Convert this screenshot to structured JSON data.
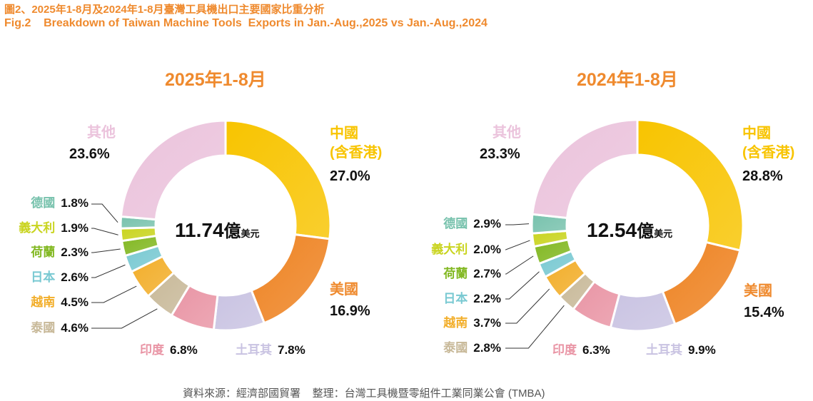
{
  "header": {
    "title_cn": "圖2、2025年1-8月及2024年1-8月臺灣工具機出口主要國家比重分析",
    "title_en": "Fig.2    Breakdown of Taiwan Machine Tools  Exports in Jan.-Aug.,2025 vs Jan.-Aug.,2024"
  },
  "footer": {
    "source": "資料來源：經濟部國貿署    整理：台灣工具機暨零組件工業同業公會 (TMBA)"
  },
  "colors": {
    "title": "#ef8a2e",
    "china": "#f8c400",
    "usa": "#ee8424",
    "turkey": "#c9c3e2",
    "india": "#e995a5",
    "thailand": "#c8b999",
    "vietnam": "#f2ae2a",
    "japan": "#79c9d2",
    "netherlands": "#82b822",
    "italy": "#c9d41f",
    "germany": "#78c2ad",
    "others": "#ebc3dc"
  },
  "chart_data": [
    {
      "type": "pie",
      "variant": "donut",
      "title": "2025年1-8月",
      "center_value": "11.74",
      "center_unit_big": "億",
      "center_unit_small": "美元",
      "start": "12 o'clock, clockwise",
      "slices": [
        {
          "key": "china",
          "name_line1": "中國",
          "name_line2": "(含香港)",
          "value": 27.0,
          "label": "27.0%"
        },
        {
          "key": "usa",
          "name_line1": "美國",
          "value": 16.9,
          "label": "16.9%"
        },
        {
          "key": "turkey",
          "name_line1": "土耳其",
          "value": 7.8,
          "label": "7.8%"
        },
        {
          "key": "india",
          "name_line1": "印度",
          "value": 6.8,
          "label": "6.8%"
        },
        {
          "key": "thailand",
          "name_line1": "泰國",
          "value": 4.6,
          "label": "4.6%"
        },
        {
          "key": "vietnam",
          "name_line1": "越南",
          "value": 4.5,
          "label": "4.5%"
        },
        {
          "key": "japan",
          "name_line1": "日本",
          "value": 2.6,
          "label": "2.6%"
        },
        {
          "key": "netherlands",
          "name_line1": "荷蘭",
          "value": 2.3,
          "label": "2.3%"
        },
        {
          "key": "italy",
          "name_line1": "義大利",
          "value": 1.9,
          "label": "1.9%"
        },
        {
          "key": "germany",
          "name_line1": "德國",
          "value": 1.8,
          "label": "1.8%"
        },
        {
          "key": "others",
          "name_line1": "其他",
          "value": 23.6,
          "label": "23.6%"
        }
      ]
    },
    {
      "type": "pie",
      "variant": "donut",
      "title": "2024年1-8月",
      "center_value": "12.54",
      "center_unit_big": "億",
      "center_unit_small": "美元",
      "start": "12 o'clock, clockwise",
      "slices": [
        {
          "key": "china",
          "name_line1": "中國",
          "name_line2": "(含香港)",
          "value": 28.8,
          "label": "28.8%"
        },
        {
          "key": "usa",
          "name_line1": "美國",
          "value": 15.4,
          "label": "15.4%"
        },
        {
          "key": "turkey",
          "name_line1": "土耳其",
          "value": 9.9,
          "label": "9.9%"
        },
        {
          "key": "india",
          "name_line1": "印度",
          "value": 6.3,
          "label": "6.3%"
        },
        {
          "key": "thailand",
          "name_line1": "泰國",
          "value": 2.8,
          "label": "2.8%"
        },
        {
          "key": "vietnam",
          "name_line1": "越南",
          "value": 3.7,
          "label": "3.7%"
        },
        {
          "key": "japan",
          "name_line1": "日本",
          "value": 2.2,
          "label": "2.2%"
        },
        {
          "key": "netherlands",
          "name_line1": "荷蘭",
          "value": 2.7,
          "label": "2.7%"
        },
        {
          "key": "italy",
          "name_line1": "義大利",
          "value": 2.0,
          "label": "2.0%"
        },
        {
          "key": "germany",
          "name_line1": "德國",
          "value": 2.9,
          "label": "2.9%"
        },
        {
          "key": "others",
          "name_line1": "其他",
          "value": 23.3,
          "label": "23.3%"
        }
      ]
    }
  ]
}
